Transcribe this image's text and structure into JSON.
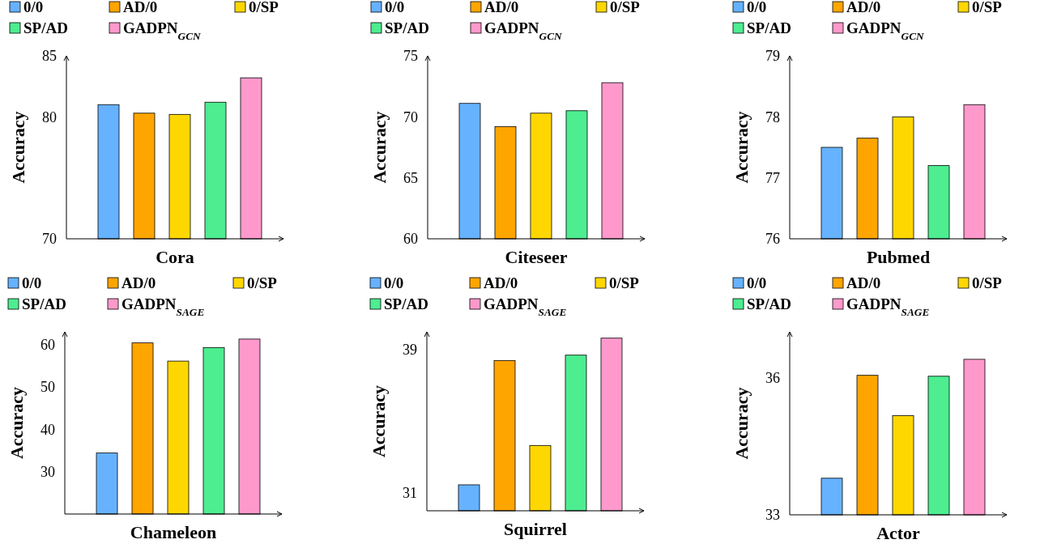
{
  "chart_data": [
    {
      "type": "bar",
      "xlabel": "Cora",
      "ylabel": "Accuracy",
      "categories": [
        null
      ],
      "ylim": [
        70,
        85
      ],
      "yticks": [
        70,
        80,
        85
      ],
      "legend": "top",
      "series": [
        {
          "name": "0/0",
          "color": "#66b2ff",
          "values": [
            81.0
          ]
        },
        {
          "name": "AD/0",
          "color": "#ffa500",
          "values": [
            80.3
          ]
        },
        {
          "name": "0/SP",
          "color": "#ffd700",
          "values": [
            80.2
          ]
        },
        {
          "name": "SP/AD",
          "color": "#4ded90",
          "values": [
            81.2
          ]
        },
        {
          "name": "GADPN$_{GCN}$",
          "color": "#ff99cc",
          "values": [
            83.2
          ]
        }
      ]
    },
    {
      "type": "bar",
      "xlabel": "Citeseer",
      "ylabel": "Accuracy",
      "categories": [
        null
      ],
      "ylim": [
        60,
        75
      ],
      "yticks": [
        60,
        65,
        70,
        75
      ],
      "legend": "top",
      "series": [
        {
          "name": "0/0",
          "color": "#66b2ff",
          "values": [
            71.1
          ]
        },
        {
          "name": "AD/0",
          "color": "#ffa500",
          "values": [
            69.2
          ]
        },
        {
          "name": "0/SP",
          "color": "#ffd700",
          "values": [
            70.3
          ]
        },
        {
          "name": "SP/AD",
          "color": "#4ded90",
          "values": [
            70.5
          ]
        },
        {
          "name": "GADPN$_{GCN}$",
          "color": "#ff99cc",
          "values": [
            72.8
          ]
        }
      ]
    },
    {
      "type": "bar",
      "xlabel": "Pubmed",
      "ylabel": "Accuracy",
      "categories": [
        null
      ],
      "ylim": [
        76,
        79
      ],
      "yticks": [
        76,
        77,
        78,
        79
      ],
      "legend": "top",
      "series": [
        {
          "name": "0/0",
          "color": "#66b2ff",
          "values": [
            77.5
          ]
        },
        {
          "name": "AD/0",
          "color": "#ffa500",
          "values": [
            77.65
          ]
        },
        {
          "name": "0/SP",
          "color": "#ffd700",
          "values": [
            78.0
          ]
        },
        {
          "name": "SP/AD",
          "color": "#4ded90",
          "values": [
            77.2
          ]
        },
        {
          "name": "GADPN$_{GCN}$",
          "color": "#ff99cc",
          "values": [
            78.2
          ]
        }
      ]
    },
    {
      "type": "bar",
      "xlabel": "Chameleon",
      "ylabel": "Accuracy",
      "categories": [
        null
      ],
      "ylim": [
        20,
        63
      ],
      "yticks": [
        30,
        40,
        50,
        60
      ],
      "legend": "top",
      "series": [
        {
          "name": "0/0",
          "color": "#66b2ff",
          "values": [
            34.4
          ]
        },
        {
          "name": "AD/0",
          "color": "#ffa500",
          "values": [
            60.4
          ]
        },
        {
          "name": "0/SP",
          "color": "#ffd700",
          "values": [
            56.1
          ]
        },
        {
          "name": "SP/AD",
          "color": "#4ded90",
          "values": [
            59.3
          ]
        },
        {
          "name": "GADPN$_{SAGE}$",
          "color": "#ff99cc",
          "values": [
            61.3
          ]
        }
      ]
    },
    {
      "type": "bar",
      "xlabel": "Squirrel",
      "ylabel": "Accuracy",
      "categories": [
        null
      ],
      "ylim": [
        30,
        40
      ],
      "yticks": [
        31,
        39
      ],
      "legend": "top",
      "series": [
        {
          "name": "0/0",
          "color": "#66b2ff",
          "values": [
            31.45
          ]
        },
        {
          "name": "AD/0",
          "color": "#ffa500",
          "values": [
            38.4
          ]
        },
        {
          "name": "0/SP",
          "color": "#ffd700",
          "values": [
            33.65
          ]
        },
        {
          "name": "SP/AD",
          "color": "#4ded90",
          "values": [
            38.7
          ]
        },
        {
          "name": "GADPN$_{SAGE}$",
          "color": "#ff99cc",
          "values": [
            39.65
          ]
        }
      ]
    },
    {
      "type": "bar",
      "xlabel": "Actor",
      "ylabel": "Accuracy",
      "categories": [
        null
      ],
      "ylim": [
        33,
        37
      ],
      "yticks": [
        33,
        36
      ],
      "legend": "top",
      "series": [
        {
          "name": "0/0",
          "color": "#66b2ff",
          "values": [
            33.8
          ]
        },
        {
          "name": "AD/0",
          "color": "#ffa500",
          "values": [
            36.05
          ]
        },
        {
          "name": "0/SP",
          "color": "#ffd700",
          "values": [
            35.17
          ]
        },
        {
          "name": "SP/AD",
          "color": "#4ded90",
          "values": [
            36.03
          ]
        },
        {
          "name": "GADPN$_{SAGE}$",
          "color": "#ff99cc",
          "values": [
            36.4
          ]
        }
      ]
    }
  ]
}
